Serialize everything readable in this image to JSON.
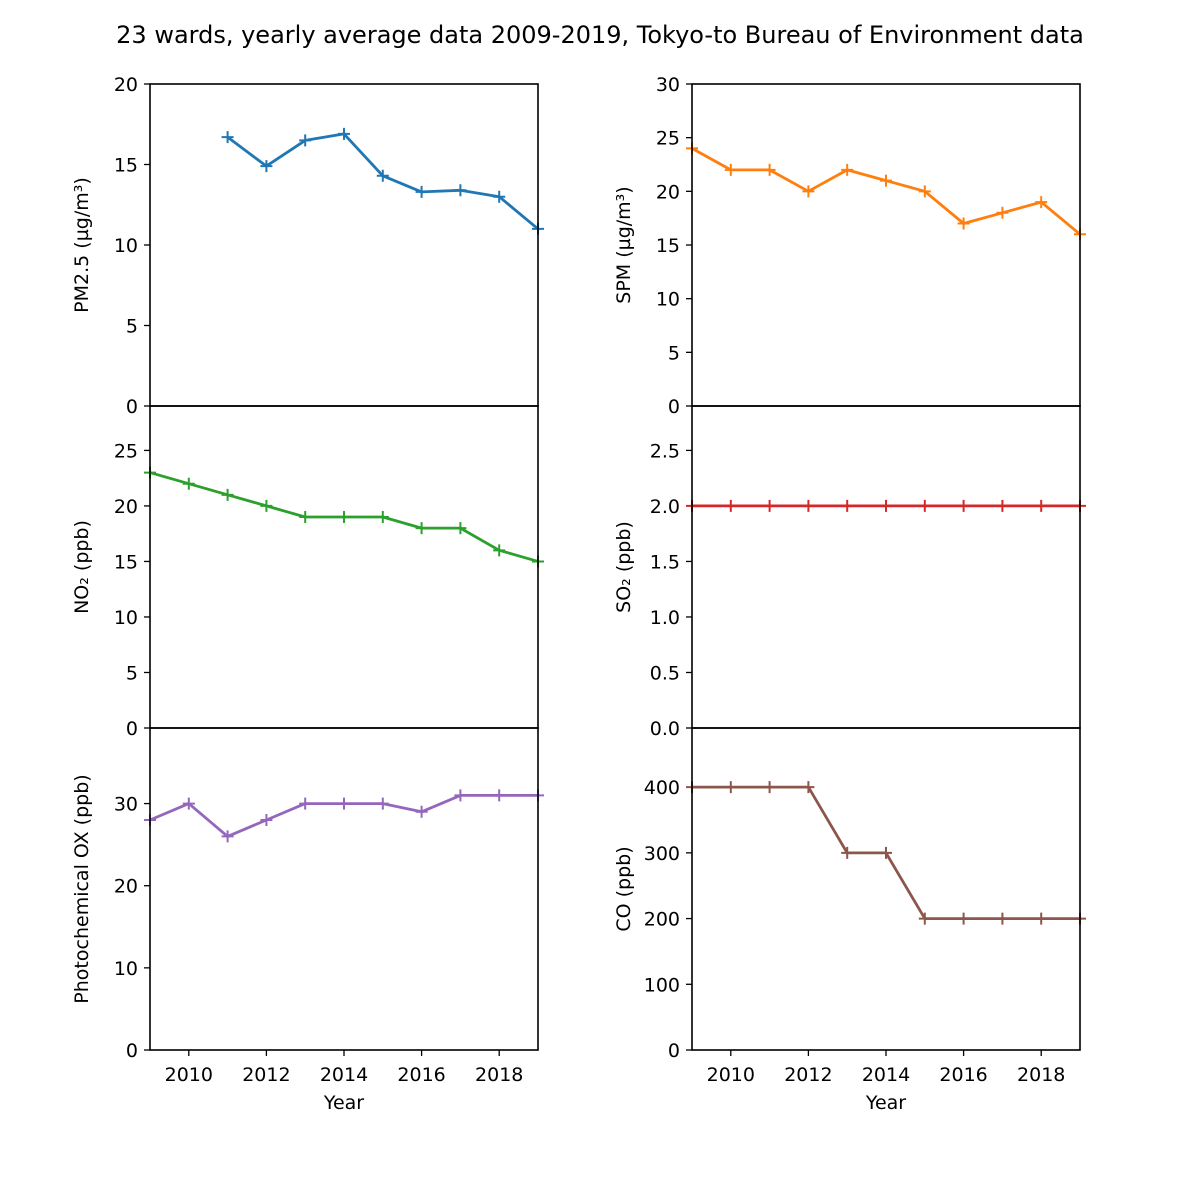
{
  "figure": {
    "title": "23 wards, yearly average data 2009-2019, Tokyo-to Bureau of Environment data"
  },
  "chart_data": [
    {
      "type": "line",
      "ylabel": "PM2.5 (µg/m³)",
      "xlabel": "",
      "xlim": [
        2009,
        2019
      ],
      "ylim": [
        0,
        20
      ],
      "yticks": [
        0,
        5,
        10,
        15,
        20
      ],
      "xticks": [],
      "color": "#1f77b4",
      "marker": "+",
      "series": [
        {
          "x": [
            2011,
            2012,
            2013,
            2014,
            2015,
            2016,
            2017,
            2018,
            2019
          ],
          "values": [
            16.7,
            14.9,
            16.5,
            16.9,
            14.3,
            13.3,
            13.4,
            13.0,
            11.0
          ]
        }
      ]
    },
    {
      "type": "line",
      "ylabel": "SPM (µg/m³)",
      "xlabel": "",
      "xlim": [
        2009,
        2019
      ],
      "ylim": [
        0,
        30
      ],
      "yticks": [
        0,
        5,
        10,
        15,
        20,
        25,
        30
      ],
      "xticks": [],
      "color": "#ff7f0e",
      "marker": "+",
      "series": [
        {
          "x": [
            2009,
            2010,
            2011,
            2012,
            2013,
            2014,
            2015,
            2016,
            2017,
            2018,
            2019
          ],
          "values": [
            24,
            22,
            22,
            20,
            22,
            21,
            20,
            17,
            18,
            19,
            16
          ]
        }
      ]
    },
    {
      "type": "line",
      "ylabel": "NO₂ (ppb)",
      "xlabel": "",
      "xlim": [
        2009,
        2019
      ],
      "ylim": [
        0,
        29
      ],
      "yticks": [
        0,
        5,
        10,
        15,
        20,
        25
      ],
      "xticks": [],
      "color": "#2ca02c",
      "marker": "+",
      "series": [
        {
          "x": [
            2009,
            2010,
            2011,
            2012,
            2013,
            2014,
            2015,
            2016,
            2017,
            2018,
            2019
          ],
          "values": [
            23,
            22,
            21,
            20,
            19,
            19,
            19,
            18,
            18,
            16,
            15
          ]
        }
      ]
    },
    {
      "type": "line",
      "ylabel": "SO₂ (ppb)",
      "xlabel": "",
      "xlim": [
        2009,
        2019
      ],
      "ylim": [
        0,
        2.9
      ],
      "yticks": [
        0.0,
        0.5,
        1.0,
        1.5,
        2.0,
        2.5
      ],
      "xticks": [],
      "color": "#d62728",
      "marker": "+",
      "series": [
        {
          "x": [
            2009,
            2010,
            2011,
            2012,
            2013,
            2014,
            2015,
            2016,
            2017,
            2018,
            2019
          ],
          "values": [
            2,
            2,
            2,
            2,
            2,
            2,
            2,
            2,
            2,
            2,
            2
          ]
        }
      ]
    },
    {
      "type": "line",
      "ylabel": "Photochemical OX (ppb)",
      "xlabel": "Year",
      "xlim": [
        2009,
        2019
      ],
      "ylim": [
        0,
        39.2
      ],
      "yticks": [
        0,
        10,
        20,
        30
      ],
      "xticks": [
        2010,
        2012,
        2014,
        2016,
        2018
      ],
      "color": "#9467bd",
      "marker": "+",
      "series": [
        {
          "x": [
            2009,
            2010,
            2011,
            2012,
            2013,
            2014,
            2015,
            2016,
            2017,
            2018,
            2019
          ],
          "values": [
            28,
            30,
            26,
            28,
            30,
            30,
            30,
            29,
            31,
            31,
            31
          ]
        }
      ]
    },
    {
      "type": "line",
      "ylabel": "CO (ppb)",
      "xlabel": "Year",
      "xlim": [
        2009,
        2019
      ],
      "ylim": [
        0,
        490
      ],
      "yticks": [
        0,
        100,
        200,
        300,
        400
      ],
      "xticks": [
        2010,
        2012,
        2014,
        2016,
        2018
      ],
      "color": "#8c564b",
      "marker": "+",
      "series": [
        {
          "x": [
            2009,
            2010,
            2011,
            2012,
            2013,
            2014,
            2015,
            2016,
            2017,
            2018,
            2019
          ],
          "values": [
            400,
            400,
            400,
            400,
            300,
            300,
            200,
            200,
            200,
            200,
            200
          ]
        }
      ]
    }
  ]
}
